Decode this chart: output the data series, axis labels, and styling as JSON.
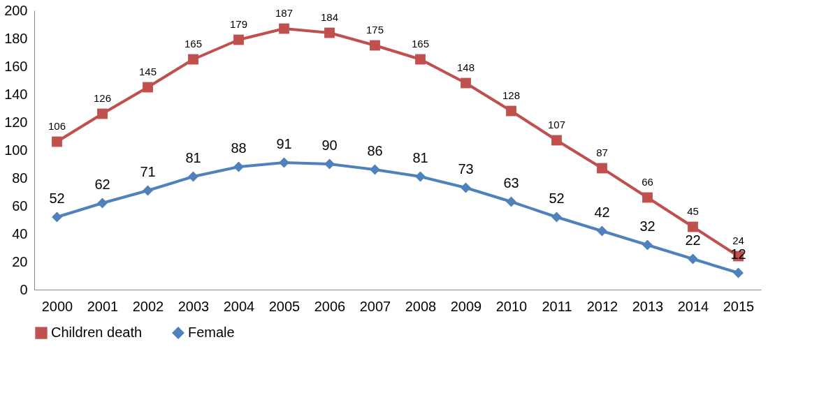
{
  "chart_data": {
    "type": "line",
    "categories": [
      "2000",
      "2001",
      "2002",
      "2003",
      "2004",
      "2005",
      "2006",
      "2007",
      "2008",
      "2009",
      "2010",
      "2011",
      "2012",
      "2013",
      "2014",
      "2015"
    ],
    "series": [
      {
        "name": "Children death",
        "color": "#c0504d",
        "marker": "square",
        "values": [
          106,
          126,
          145,
          165,
          179,
          187,
          184,
          175,
          165,
          148,
          128,
          107,
          87,
          66,
          45,
          24
        ]
      },
      {
        "name": "Female",
        "color": "#4f81bd",
        "marker": "diamond",
        "values": [
          52,
          62,
          71,
          81,
          88,
          91,
          90,
          86,
          81,
          73,
          63,
          52,
          42,
          32,
          22,
          12
        ]
      }
    ],
    "ylim": [
      0,
      200
    ],
    "yticks": [
      0,
      20,
      40,
      60,
      80,
      100,
      120,
      140,
      160,
      180,
      200
    ],
    "grid": false,
    "legend": "bottom",
    "data_labels": true
  }
}
